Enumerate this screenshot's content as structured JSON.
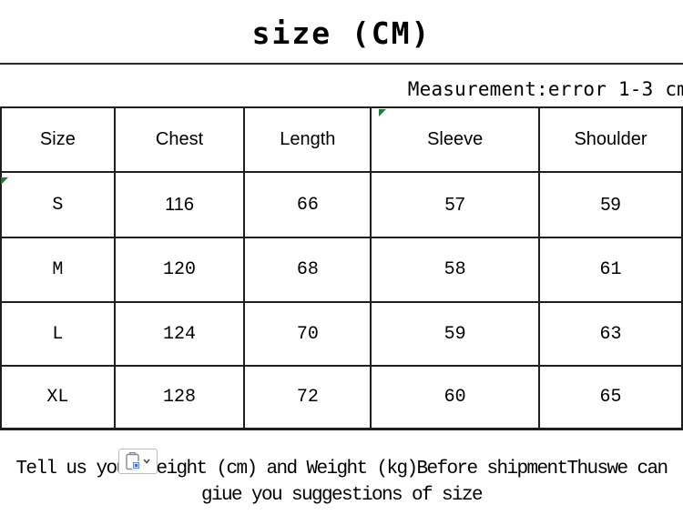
{
  "page": {
    "title": "size (CM)"
  },
  "measurement_note": "Measurement:error 1-3 cm",
  "size_table": {
    "columns": [
      "Size",
      "Chest",
      "Length",
      "Sleeve",
      "Shoulder"
    ],
    "rows": [
      [
        "S",
        "116",
        "66",
        "57",
        "59"
      ],
      [
        "M",
        "120",
        "68",
        "58",
        "61"
      ],
      [
        "L",
        "124",
        "70",
        "59",
        "63"
      ],
      [
        "XL",
        "128",
        "72",
        "60",
        "65"
      ]
    ]
  },
  "footer": {
    "line1": "Tell us your Height (cm) and Weight (kg)Before shipmentThuswe can",
    "line2": "giue you suggestions of size"
  },
  "icons": {
    "paste_options": "clipboard-paste-icon",
    "paste_dropdown": "chevron-down-icon",
    "cell_error_marker": "green-corner-triangle"
  },
  "colors": {
    "text": "#000000",
    "grid_border": "#1f1f1f",
    "indicator_green": "#1d7d33",
    "paste_icon_blue": "#4472c4",
    "paste_box_border": "#bdbdbd"
  }
}
